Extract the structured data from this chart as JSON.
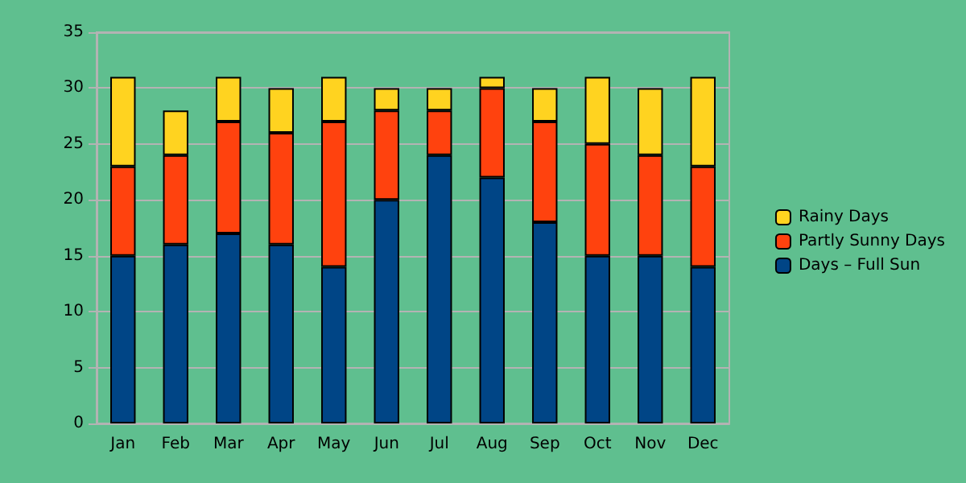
{
  "chart_data": {
    "type": "bar",
    "stacked": true,
    "categories": [
      "Jan",
      "Feb",
      "Mar",
      "Apr",
      "May",
      "Jun",
      "Jul",
      "Aug",
      "Sep",
      "Oct",
      "Nov",
      "Dec"
    ],
    "series": [
      {
        "name": "Days – Full Sun",
        "color": "#004586",
        "values": [
          15,
          16,
          17,
          16,
          14,
          20,
          24,
          22,
          18,
          15,
          15,
          14
        ]
      },
      {
        "name": "Partly Sunny Days",
        "color": "#ff420e",
        "values": [
          8,
          8,
          10,
          10,
          13,
          8,
          4,
          8,
          9,
          10,
          9,
          9
        ]
      },
      {
        "name": "Rainy Days",
        "color": "#ffd320",
        "values": [
          8,
          4,
          4,
          4,
          4,
          2,
          2,
          1,
          3,
          6,
          6,
          8
        ]
      }
    ],
    "ylim": [
      0,
      35
    ],
    "yticks": [
      0,
      5,
      10,
      15,
      20,
      25,
      30,
      35
    ],
    "grid": "y",
    "legend": "right"
  }
}
